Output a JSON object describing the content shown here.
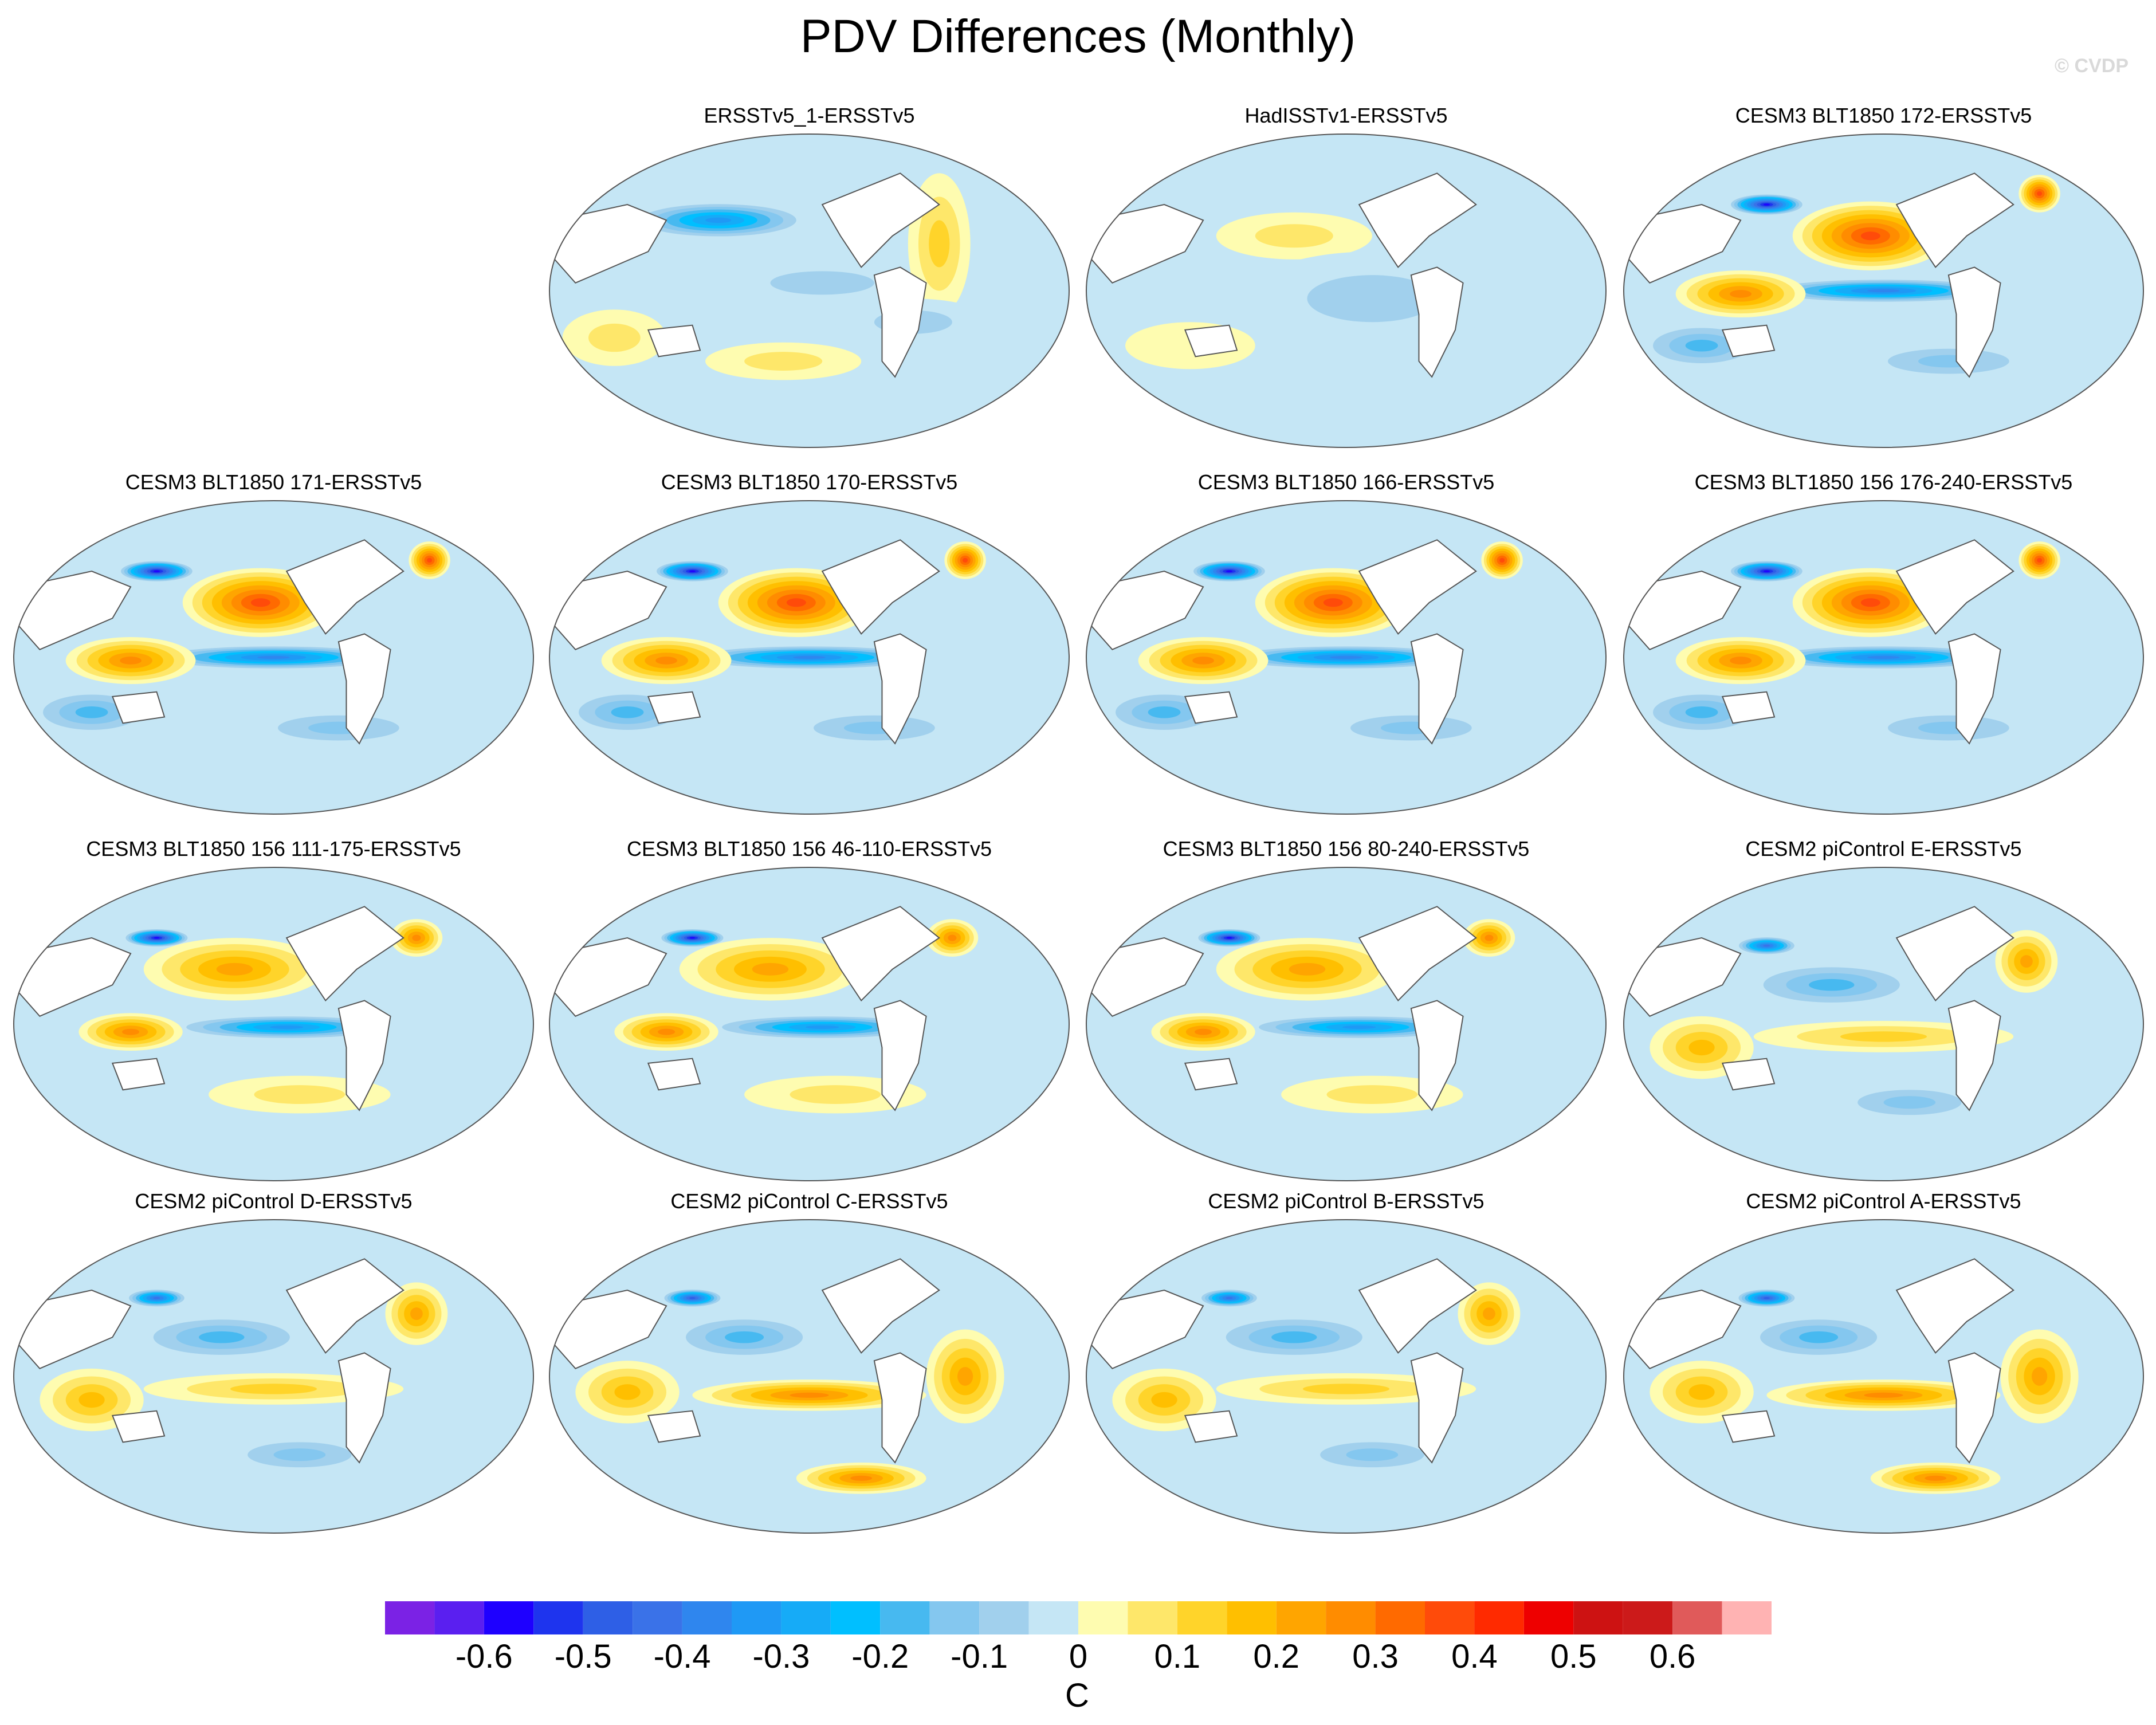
{
  "title": "PDV Differences (Monthly)",
  "watermark": "© CVDP",
  "colors": {
    "scale": [
      "#7b22e5",
      "#5a1ff0",
      "#1e00ff",
      "#1e34ee",
      "#2e5fe6",
      "#3a72e8",
      "#2f86ee",
      "#1f99f5",
      "#16abf7",
      "#00bfff",
      "#47b9f0",
      "#84c7ef",
      "#a1d0ed",
      "#c5e6f5",
      "#fefcb0",
      "#fee76a",
      "#ffd42a",
      "#ffbf00",
      "#ffa500",
      "#ff8c00",
      "#ff6a00",
      "#ff4b0a",
      "#ff2a00",
      "#ee0000",
      "#cd1212",
      "#cc1a1a",
      "#e05a5a",
      "#ffb3b3"
    ],
    "land_outline": "#555555"
  },
  "colorbar": {
    "labels": [
      "-0.6",
      "-0.5",
      "-0.4",
      "-0.3",
      "-0.2",
      "-0.1",
      "0",
      "0.1",
      "0.2",
      "0.3",
      "0.4",
      "0.5",
      "0.6"
    ],
    "unit": "C"
  },
  "panels": [
    {
      "title": "ERSSTv5_1-ERSSTv5",
      "pattern": "obs1"
    },
    {
      "title": "HadISSTv1-ERSSTv5",
      "pattern": "obs2"
    },
    {
      "title": "CESM3 BLT1850 172-ERSSTv5",
      "pattern": "strong"
    },
    {
      "title": "CESM3 BLT1850 171-ERSSTv5",
      "pattern": "strong"
    },
    {
      "title": "CESM3 BLT1850 170-ERSSTv5",
      "pattern": "strong"
    },
    {
      "title": "CESM3 BLT1850 166-ERSSTv5",
      "pattern": "strong"
    },
    {
      "title": "CESM3 BLT1850 156 176-240-ERSSTv5",
      "pattern": "strong"
    },
    {
      "title": "CESM3 BLT1850 156 111-175-ERSSTv5",
      "pattern": "mid"
    },
    {
      "title": "CESM3 BLT1850 156 46-110-ERSSTv5",
      "pattern": "mid"
    },
    {
      "title": "CESM3 BLT1850 156 80-240-ERSSTv5",
      "pattern": "mid"
    },
    {
      "title": "CESM2 piControl E-ERSSTv5",
      "pattern": "cesm2"
    },
    {
      "title": "CESM2 piControl D-ERSSTv5",
      "pattern": "cesm2"
    },
    {
      "title": "CESM2 piControl C-ERSSTv5",
      "pattern": "cesm2warm"
    },
    {
      "title": "CESM2 piControl B-ERSSTv5",
      "pattern": "cesm2"
    },
    {
      "title": "CESM2 piControl A-ERSSTv5",
      "pattern": "cesm2warm"
    }
  ]
}
